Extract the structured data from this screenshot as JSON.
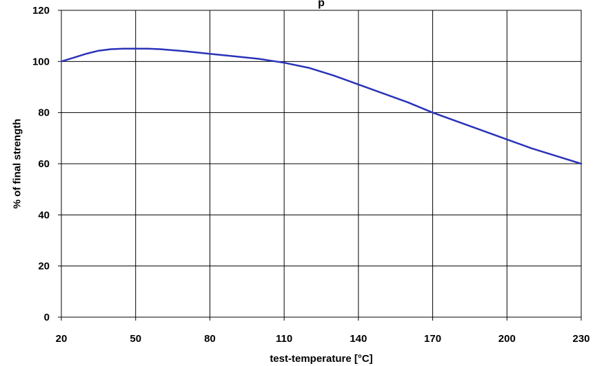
{
  "chart_data": {
    "type": "line",
    "title": "p",
    "xlabel": "test-temperature [°C]",
    "ylabel": "% of final strength",
    "xlim": [
      20,
      230
    ],
    "ylim": [
      0,
      120
    ],
    "x_ticks": [
      20,
      50,
      80,
      110,
      140,
      170,
      200,
      230
    ],
    "y_ticks": [
      0,
      20,
      40,
      60,
      80,
      100,
      120
    ],
    "x_tick_labels": [
      "20",
      "50",
      "80",
      "110",
      "140",
      "170",
      "200",
      "230"
    ],
    "y_tick_labels": [
      "0",
      "20",
      "40",
      "60",
      "80",
      "100",
      "120"
    ],
    "grid": true,
    "legend": "none",
    "series": [
      {
        "color": "#2933B8",
        "x": [
          20,
          25,
          30,
          35,
          40,
          45,
          50,
          55,
          60,
          70,
          80,
          90,
          100,
          110,
          120,
          130,
          140,
          150,
          160,
          170,
          180,
          190,
          200,
          210,
          220,
          230
        ],
        "values": [
          100,
          101.5,
          103,
          104.2,
          104.8,
          105,
          105,
          105,
          104.8,
          104,
          103,
          102,
          101,
          99.5,
          97.5,
          94.5,
          91,
          87.5,
          84,
          80,
          76.5,
          73,
          69.5,
          66,
          63,
          60
        ]
      }
    ]
  }
}
